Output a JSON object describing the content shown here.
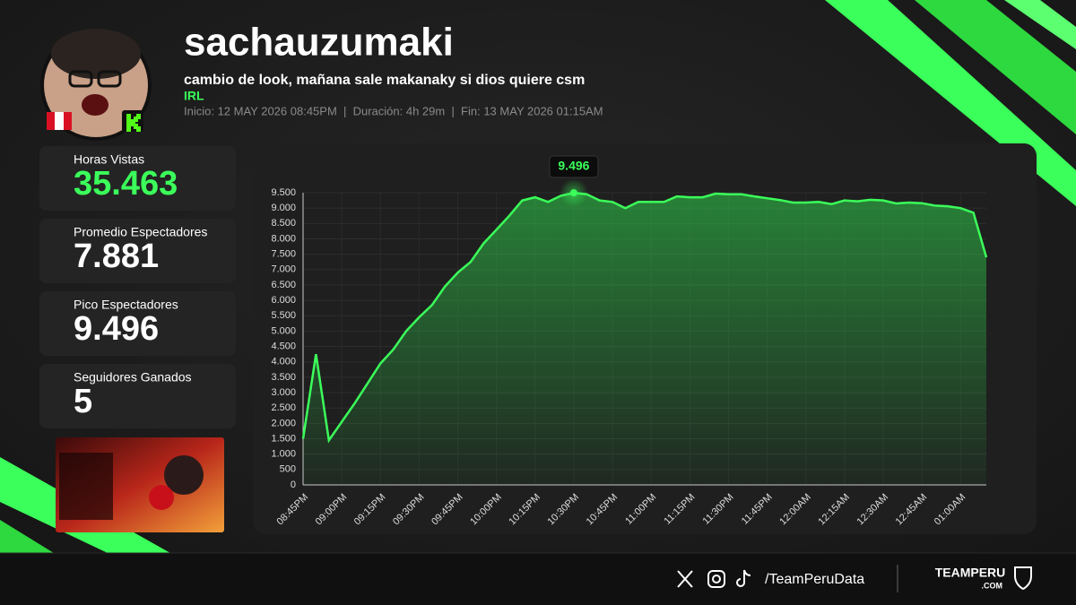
{
  "profile": {
    "name": "sachauzumaki",
    "stream_title": "cambio de look, mañana sale makanaky si dios quiere csm",
    "category": "IRL",
    "info": "Inicio: 12 MAY 2026 08:45PM  |  Duración: 4h 29m  |  Fin: 13 MAY 2026 01:15AM"
  },
  "stats": [
    {
      "label": "Horas Vistas",
      "value": "35.463"
    },
    {
      "label": "Promedio Espectadores",
      "value": "7.881"
    },
    {
      "label": "Pico Espectadores",
      "value": "9.496"
    },
    {
      "label": "Seguidores Ganados",
      "value": "5"
    }
  ],
  "footer": {
    "handle": "/TeamPeruData",
    "brand": "TEAMPERU",
    "brand_suffix": ".COM"
  },
  "chart_data": {
    "type": "area",
    "color": "#3bff5a",
    "grid": true,
    "categories": [
      "08:45PM",
      null,
      null,
      "09:00PM",
      null,
      null,
      "09:15PM",
      null,
      null,
      "09:30PM",
      null,
      null,
      "09:45PM",
      null,
      null,
      "10:00PM",
      null,
      null,
      "10:15PM",
      null,
      null,
      "10:30PM",
      null,
      null,
      "10:45PM",
      null,
      null,
      "11:00PM",
      null,
      null,
      "11:15PM",
      null,
      null,
      "11:30PM",
      null,
      null,
      "11:45PM",
      null,
      null,
      "12:00AM",
      null,
      null,
      "12:15AM",
      null,
      null,
      "12:30AM",
      null,
      null,
      "12:45AM",
      null,
      null,
      "01:00AM",
      null,
      null
    ],
    "values": [
      1500,
      4250,
      1450,
      2050,
      2650,
      3300,
      3950,
      4400,
      5000,
      5450,
      5850,
      6450,
      6900,
      7250,
      7850,
      8300,
      8750,
      9250,
      9350,
      9200,
      9400,
      9496,
      9450,
      9250,
      9200,
      9000,
      9200,
      9200,
      9200,
      9380,
      9350,
      9350,
      9470,
      9450,
      9450,
      9380,
      9320,
      9260,
      9180,
      9180,
      9200,
      9130,
      9250,
      9220,
      9270,
      9250,
      9150,
      9180,
      9160,
      9080,
      9060,
      9000,
      8850,
      7400
    ],
    "value_labels": [
      null,
      null,
      null,
      null,
      null,
      null,
      null,
      null,
      null,
      null,
      null,
      null,
      null,
      null,
      null,
      null,
      null,
      null,
      null,
      null,
      null,
      "9.496",
      null,
      null,
      null,
      null,
      null,
      null,
      null,
      null,
      null,
      null,
      null,
      null,
      null,
      null,
      null,
      null,
      null,
      null,
      null,
      null,
      null,
      null,
      null,
      null,
      null,
      null,
      null,
      null,
      null,
      null,
      null,
      null
    ],
    "ylim": [
      0,
      9500
    ],
    "yticks": [
      0,
      500,
      {
        "value": 1000,
        "label": "1.000"
      },
      {
        "value": 1500,
        "label": "1.500"
      },
      {
        "value": 2000,
        "label": "2.000"
      },
      {
        "value": 2500,
        "label": "2.500"
      },
      {
        "value": 3000,
        "label": "3.000"
      },
      {
        "value": 3500,
        "label": "3.500"
      },
      {
        "value": 4000,
        "label": "4.000"
      },
      {
        "value": 4500,
        "label": "4.500"
      },
      {
        "value": 5000,
        "label": "5.000"
      },
      {
        "value": 5500,
        "label": "5.500"
      },
      {
        "value": 6000,
        "label": "6.000"
      },
      {
        "value": 6500,
        "label": "6.500"
      },
      {
        "value": 7000,
        "label": "7.000"
      },
      {
        "value": 7500,
        "label": "7.500"
      },
      {
        "value": 8000,
        "label": "8.000"
      },
      {
        "value": 8500,
        "label": "8.500"
      },
      {
        "value": 9000,
        "label": "9.000"
      },
      {
        "value": 9500,
        "label": "9.500"
      }
    ]
  }
}
